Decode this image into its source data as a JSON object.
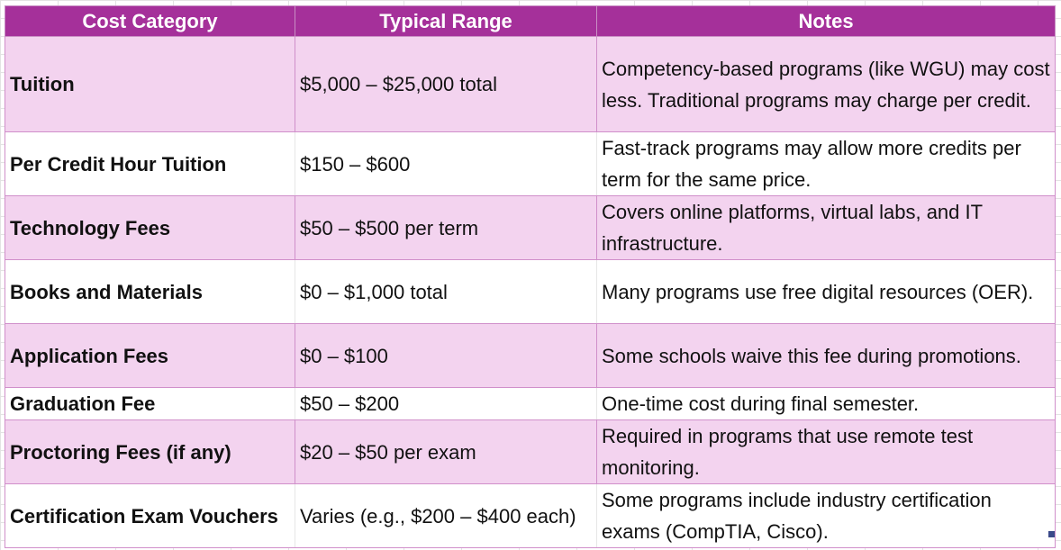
{
  "table": {
    "headers": {
      "category": "Cost Category",
      "range": "Typical Range",
      "notes": "Notes"
    },
    "rows": [
      {
        "category": "Tuition",
        "range": "$5,000 – $25,000 total",
        "notes": "Competency-based programs (like WGU) may cost less. Traditional programs may charge per credit."
      },
      {
        "category": "Per Credit Hour Tuition",
        "range": "$150 – $600",
        "notes": "Fast-track programs may allow more credits per term for the same price."
      },
      {
        "category": "Technology Fees",
        "range": "$50 – $500 per term",
        "notes": "Covers online platforms, virtual labs, and IT infrastructure."
      },
      {
        "category": "Books and Materials",
        "range": "$0 – $1,000 total",
        "notes": "Many programs use free digital resources (OER)."
      },
      {
        "category": "Application Fees",
        "range": "$0 – $100",
        "notes": "Some schools waive this fee during promotions."
      },
      {
        "category": "Graduation Fee",
        "range": "$50 – $200",
        "notes": "One-time cost during final semester."
      },
      {
        "category": "Proctoring Fees (if any)",
        "range": "$20 – $50 per exam",
        "notes": "Required in programs that use remote test monitoring."
      },
      {
        "category": "Certification Exam Vouchers",
        "range": "Varies (e.g., $200 – $400 each)",
        "notes": "Some programs include industry certification exams (CompTIA, Cisco)."
      }
    ]
  },
  "colors": {
    "header_bg": "#a5309a",
    "header_text": "#ffffff",
    "band_pink": "#f3d3ef",
    "band_white": "#ffffff",
    "border": "#d08fca"
  }
}
